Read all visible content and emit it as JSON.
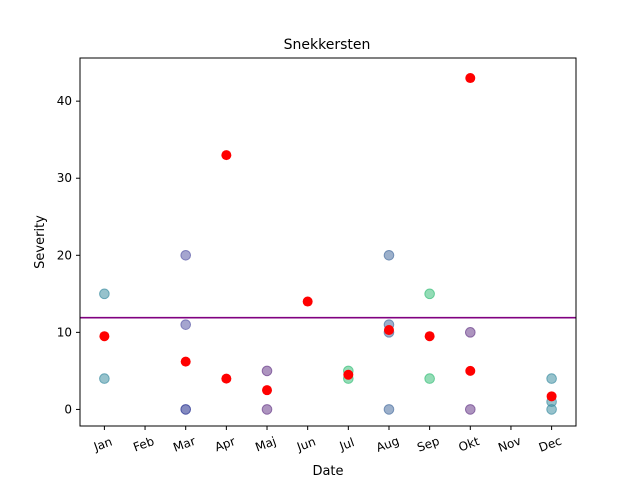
{
  "chart_data": {
    "type": "scatter",
    "title": "Snekkersten",
    "xlabel": "Date",
    "ylabel": "Severity",
    "categories": [
      "Jan",
      "Feb",
      "Mar",
      "Apr",
      "Maj",
      "Jun",
      "Jul",
      "Aug",
      "Sep",
      "Okt",
      "Nov",
      "Dec"
    ],
    "xlim": [
      -0.6,
      11.6
    ],
    "ylim": [
      -2.15,
      45.6
    ],
    "yticks": [
      0,
      10,
      20,
      30,
      40
    ],
    "grid": false,
    "reference_line": {
      "y": 11.9,
      "color": "#800080"
    },
    "series": [
      {
        "marker_color": "#3f8fa3",
        "points": [
          {
            "x": "Jan",
            "y": 15
          },
          {
            "x": "Jan",
            "y": 4
          },
          {
            "x": "Dec",
            "y": 4
          },
          {
            "x": "Dec",
            "y": 1
          },
          {
            "x": "Dec",
            "y": 0
          }
        ]
      },
      {
        "marker_color": "#5b5ba8",
        "points": [
          {
            "x": "Mar",
            "y": 20
          },
          {
            "x": "Mar",
            "y": 11
          }
        ]
      },
      {
        "marker_color": "#1f2a8c",
        "points": [
          {
            "x": "Mar",
            "y": 0
          }
        ]
      },
      {
        "marker_color": "#6a3d8a",
        "points": [
          {
            "x": "Maj",
            "y": 5
          },
          {
            "x": "Maj",
            "y": 0
          },
          {
            "x": "Okt",
            "y": 10
          },
          {
            "x": "Okt",
            "y": 0
          }
        ]
      },
      {
        "marker_color": "#4a6fa0",
        "points": [
          {
            "x": "Aug",
            "y": 20
          },
          {
            "x": "Aug",
            "y": 11
          },
          {
            "x": "Aug",
            "y": 10
          },
          {
            "x": "Aug",
            "y": 0
          }
        ]
      },
      {
        "marker_color": "#3bbf7a",
        "points": [
          {
            "x": "Sep",
            "y": 15
          },
          {
            "x": "Sep",
            "y": 4
          },
          {
            "x": "Jul",
            "y": 5
          },
          {
            "x": "Jul",
            "y": 4
          }
        ]
      },
      {
        "marker_color": "#ff0000",
        "points": [
          {
            "x": "Jan",
            "y": 9.5
          },
          {
            "x": "Mar",
            "y": 6.2
          },
          {
            "x": "Apr",
            "y": 33
          },
          {
            "x": "Apr",
            "y": 4
          },
          {
            "x": "Maj",
            "y": 2.5
          },
          {
            "x": "Jun",
            "y": 14
          },
          {
            "x": "Jul",
            "y": 4.5
          },
          {
            "x": "Aug",
            "y": 10.3
          },
          {
            "x": "Sep",
            "y": 9.5
          },
          {
            "x": "Okt",
            "y": 43
          },
          {
            "x": "Okt",
            "y": 5
          },
          {
            "x": "Dec",
            "y": 1.7
          }
        ]
      }
    ]
  }
}
